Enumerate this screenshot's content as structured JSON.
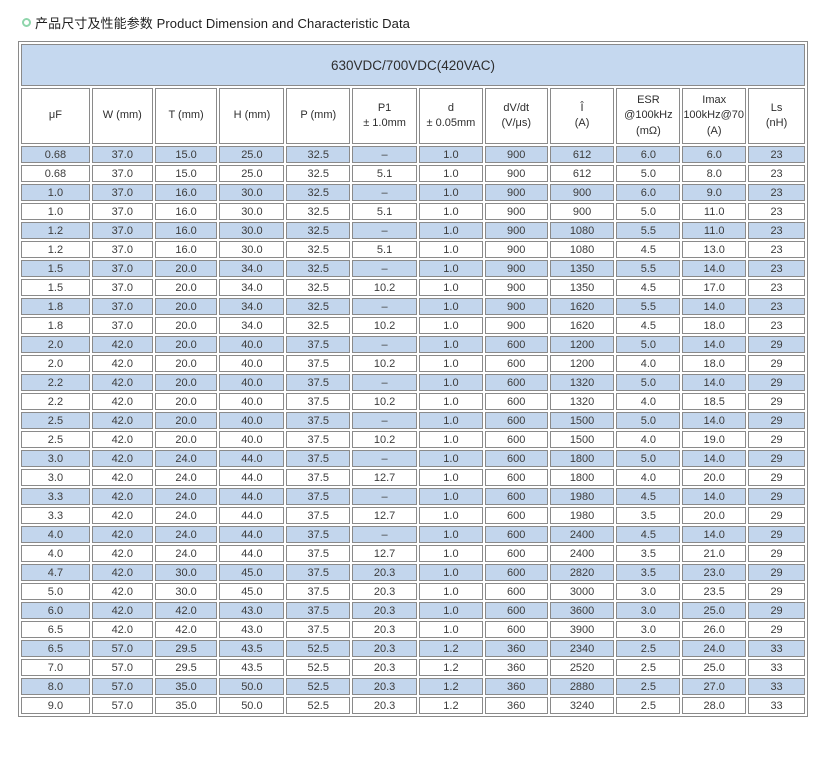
{
  "page": {
    "title": "产品尺寸及性能参数 Product Dimension and Characteristic Data"
  },
  "colors": {
    "row_blue": "#c3d6ed",
    "band_blue": "#c5d8ef",
    "border_gray": "#8a8a8a",
    "title_icon_green": "#8ed5ab"
  },
  "icons": {
    "title_bullet": "green-ring-icon"
  },
  "table": {
    "band_title": "630VDC/700VDC(420VAC)",
    "columns": [
      {
        "id": "uf",
        "lines": [
          "μF"
        ]
      },
      {
        "id": "w",
        "lines": [
          "W (mm)"
        ]
      },
      {
        "id": "t",
        "lines": [
          "T (mm)"
        ]
      },
      {
        "id": "h",
        "lines": [
          "H (mm)"
        ]
      },
      {
        "id": "p",
        "lines": [
          "P (mm)"
        ]
      },
      {
        "id": "p1",
        "lines": [
          "P1",
          "± 1.0mm"
        ]
      },
      {
        "id": "d",
        "lines": [
          "d",
          "± 0.05mm"
        ]
      },
      {
        "id": "dvdt",
        "lines": [
          "dV/dt",
          "(V/μs)"
        ]
      },
      {
        "id": "ipeak",
        "lines": [
          "Î",
          "(A)"
        ]
      },
      {
        "id": "esr",
        "lines": [
          "ESR",
          "@100kHz",
          "(mΩ)"
        ]
      },
      {
        "id": "imax",
        "lines": [
          "Imax",
          "100kHz@70℃",
          "(A)"
        ]
      },
      {
        "id": "ls",
        "lines": [
          "Ls",
          "(nH)"
        ]
      }
    ],
    "rows": [
      [
        "0.68",
        "37.0",
        "15.0",
        "25.0",
        "32.5",
        "–",
        "1.0",
        "900",
        "612",
        "6.0",
        "6.0",
        "23"
      ],
      [
        "0.68",
        "37.0",
        "15.0",
        "25.0",
        "32.5",
        "5.1",
        "1.0",
        "900",
        "612",
        "5.0",
        "8.0",
        "23"
      ],
      [
        "1.0",
        "37.0",
        "16.0",
        "30.0",
        "32.5",
        "–",
        "1.0",
        "900",
        "900",
        "6.0",
        "9.0",
        "23"
      ],
      [
        "1.0",
        "37.0",
        "16.0",
        "30.0",
        "32.5",
        "5.1",
        "1.0",
        "900",
        "900",
        "5.0",
        "11.0",
        "23"
      ],
      [
        "1.2",
        "37.0",
        "16.0",
        "30.0",
        "32.5",
        "–",
        "1.0",
        "900",
        "1080",
        "5.5",
        "11.0",
        "23"
      ],
      [
        "1.2",
        "37.0",
        "16.0",
        "30.0",
        "32.5",
        "5.1",
        "1.0",
        "900",
        "1080",
        "4.5",
        "13.0",
        "23"
      ],
      [
        "1.5",
        "37.0",
        "20.0",
        "34.0",
        "32.5",
        "–",
        "1.0",
        "900",
        "1350",
        "5.5",
        "14.0",
        "23"
      ],
      [
        "1.5",
        "37.0",
        "20.0",
        "34.0",
        "32.5",
        "10.2",
        "1.0",
        "900",
        "1350",
        "4.5",
        "17.0",
        "23"
      ],
      [
        "1.8",
        "37.0",
        "20.0",
        "34.0",
        "32.5",
        "–",
        "1.0",
        "900",
        "1620",
        "5.5",
        "14.0",
        "23"
      ],
      [
        "1.8",
        "37.0",
        "20.0",
        "34.0",
        "32.5",
        "10.2",
        "1.0",
        "900",
        "1620",
        "4.5",
        "18.0",
        "23"
      ],
      [
        "2.0",
        "42.0",
        "20.0",
        "40.0",
        "37.5",
        "–",
        "1.0",
        "600",
        "1200",
        "5.0",
        "14.0",
        "29"
      ],
      [
        "2.0",
        "42.0",
        "20.0",
        "40.0",
        "37.5",
        "10.2",
        "1.0",
        "600",
        "1200",
        "4.0",
        "18.0",
        "29"
      ],
      [
        "2.2",
        "42.0",
        "20.0",
        "40.0",
        "37.5",
        "–",
        "1.0",
        "600",
        "1320",
        "5.0",
        "14.0",
        "29"
      ],
      [
        "2.2",
        "42.0",
        "20.0",
        "40.0",
        "37.5",
        "10.2",
        "1.0",
        "600",
        "1320",
        "4.0",
        "18.5",
        "29"
      ],
      [
        "2.5",
        "42.0",
        "20.0",
        "40.0",
        "37.5",
        "–",
        "1.0",
        "600",
        "1500",
        "5.0",
        "14.0",
        "29"
      ],
      [
        "2.5",
        "42.0",
        "20.0",
        "40.0",
        "37.5",
        "10.2",
        "1.0",
        "600",
        "1500",
        "4.0",
        "19.0",
        "29"
      ],
      [
        "3.0",
        "42.0",
        "24.0",
        "44.0",
        "37.5",
        "–",
        "1.0",
        "600",
        "1800",
        "5.0",
        "14.0",
        "29"
      ],
      [
        "3.0",
        "42.0",
        "24.0",
        "44.0",
        "37.5",
        "12.7",
        "1.0",
        "600",
        "1800",
        "4.0",
        "20.0",
        "29"
      ],
      [
        "3.3",
        "42.0",
        "24.0",
        "44.0",
        "37.5",
        "–",
        "1.0",
        "600",
        "1980",
        "4.5",
        "14.0",
        "29"
      ],
      [
        "3.3",
        "42.0",
        "24.0",
        "44.0",
        "37.5",
        "12.7",
        "1.0",
        "600",
        "1980",
        "3.5",
        "20.0",
        "29"
      ],
      [
        "4.0",
        "42.0",
        "24.0",
        "44.0",
        "37.5",
        "–",
        "1.0",
        "600",
        "2400",
        "4.5",
        "14.0",
        "29"
      ],
      [
        "4.0",
        "42.0",
        "24.0",
        "44.0",
        "37.5",
        "12.7",
        "1.0",
        "600",
        "2400",
        "3.5",
        "21.0",
        "29"
      ],
      [
        "4.7",
        "42.0",
        "30.0",
        "45.0",
        "37.5",
        "20.3",
        "1.0",
        "600",
        "2820",
        "3.5",
        "23.0",
        "29"
      ],
      [
        "5.0",
        "42.0",
        "30.0",
        "45.0",
        "37.5",
        "20.3",
        "1.0",
        "600",
        "3000",
        "3.0",
        "23.5",
        "29"
      ],
      [
        "6.0",
        "42.0",
        "42.0",
        "43.0",
        "37.5",
        "20.3",
        "1.0",
        "600",
        "3600",
        "3.0",
        "25.0",
        "29"
      ],
      [
        "6.5",
        "42.0",
        "42.0",
        "43.0",
        "37.5",
        "20.3",
        "1.0",
        "600",
        "3900",
        "3.0",
        "26.0",
        "29"
      ],
      [
        "6.5",
        "57.0",
        "29.5",
        "43.5",
        "52.5",
        "20.3",
        "1.2",
        "360",
        "2340",
        "2.5",
        "24.0",
        "33"
      ],
      [
        "7.0",
        "57.0",
        "29.5",
        "43.5",
        "52.5",
        "20.3",
        "1.2",
        "360",
        "2520",
        "2.5",
        "25.0",
        "33"
      ],
      [
        "8.0",
        "57.0",
        "35.0",
        "50.0",
        "52.5",
        "20.3",
        "1.2",
        "360",
        "2880",
        "2.5",
        "27.0",
        "33"
      ],
      [
        "9.0",
        "57.0",
        "35.0",
        "50.0",
        "52.5",
        "20.3",
        "1.2",
        "360",
        "3240",
        "2.5",
        "28.0",
        "33"
      ]
    ]
  }
}
